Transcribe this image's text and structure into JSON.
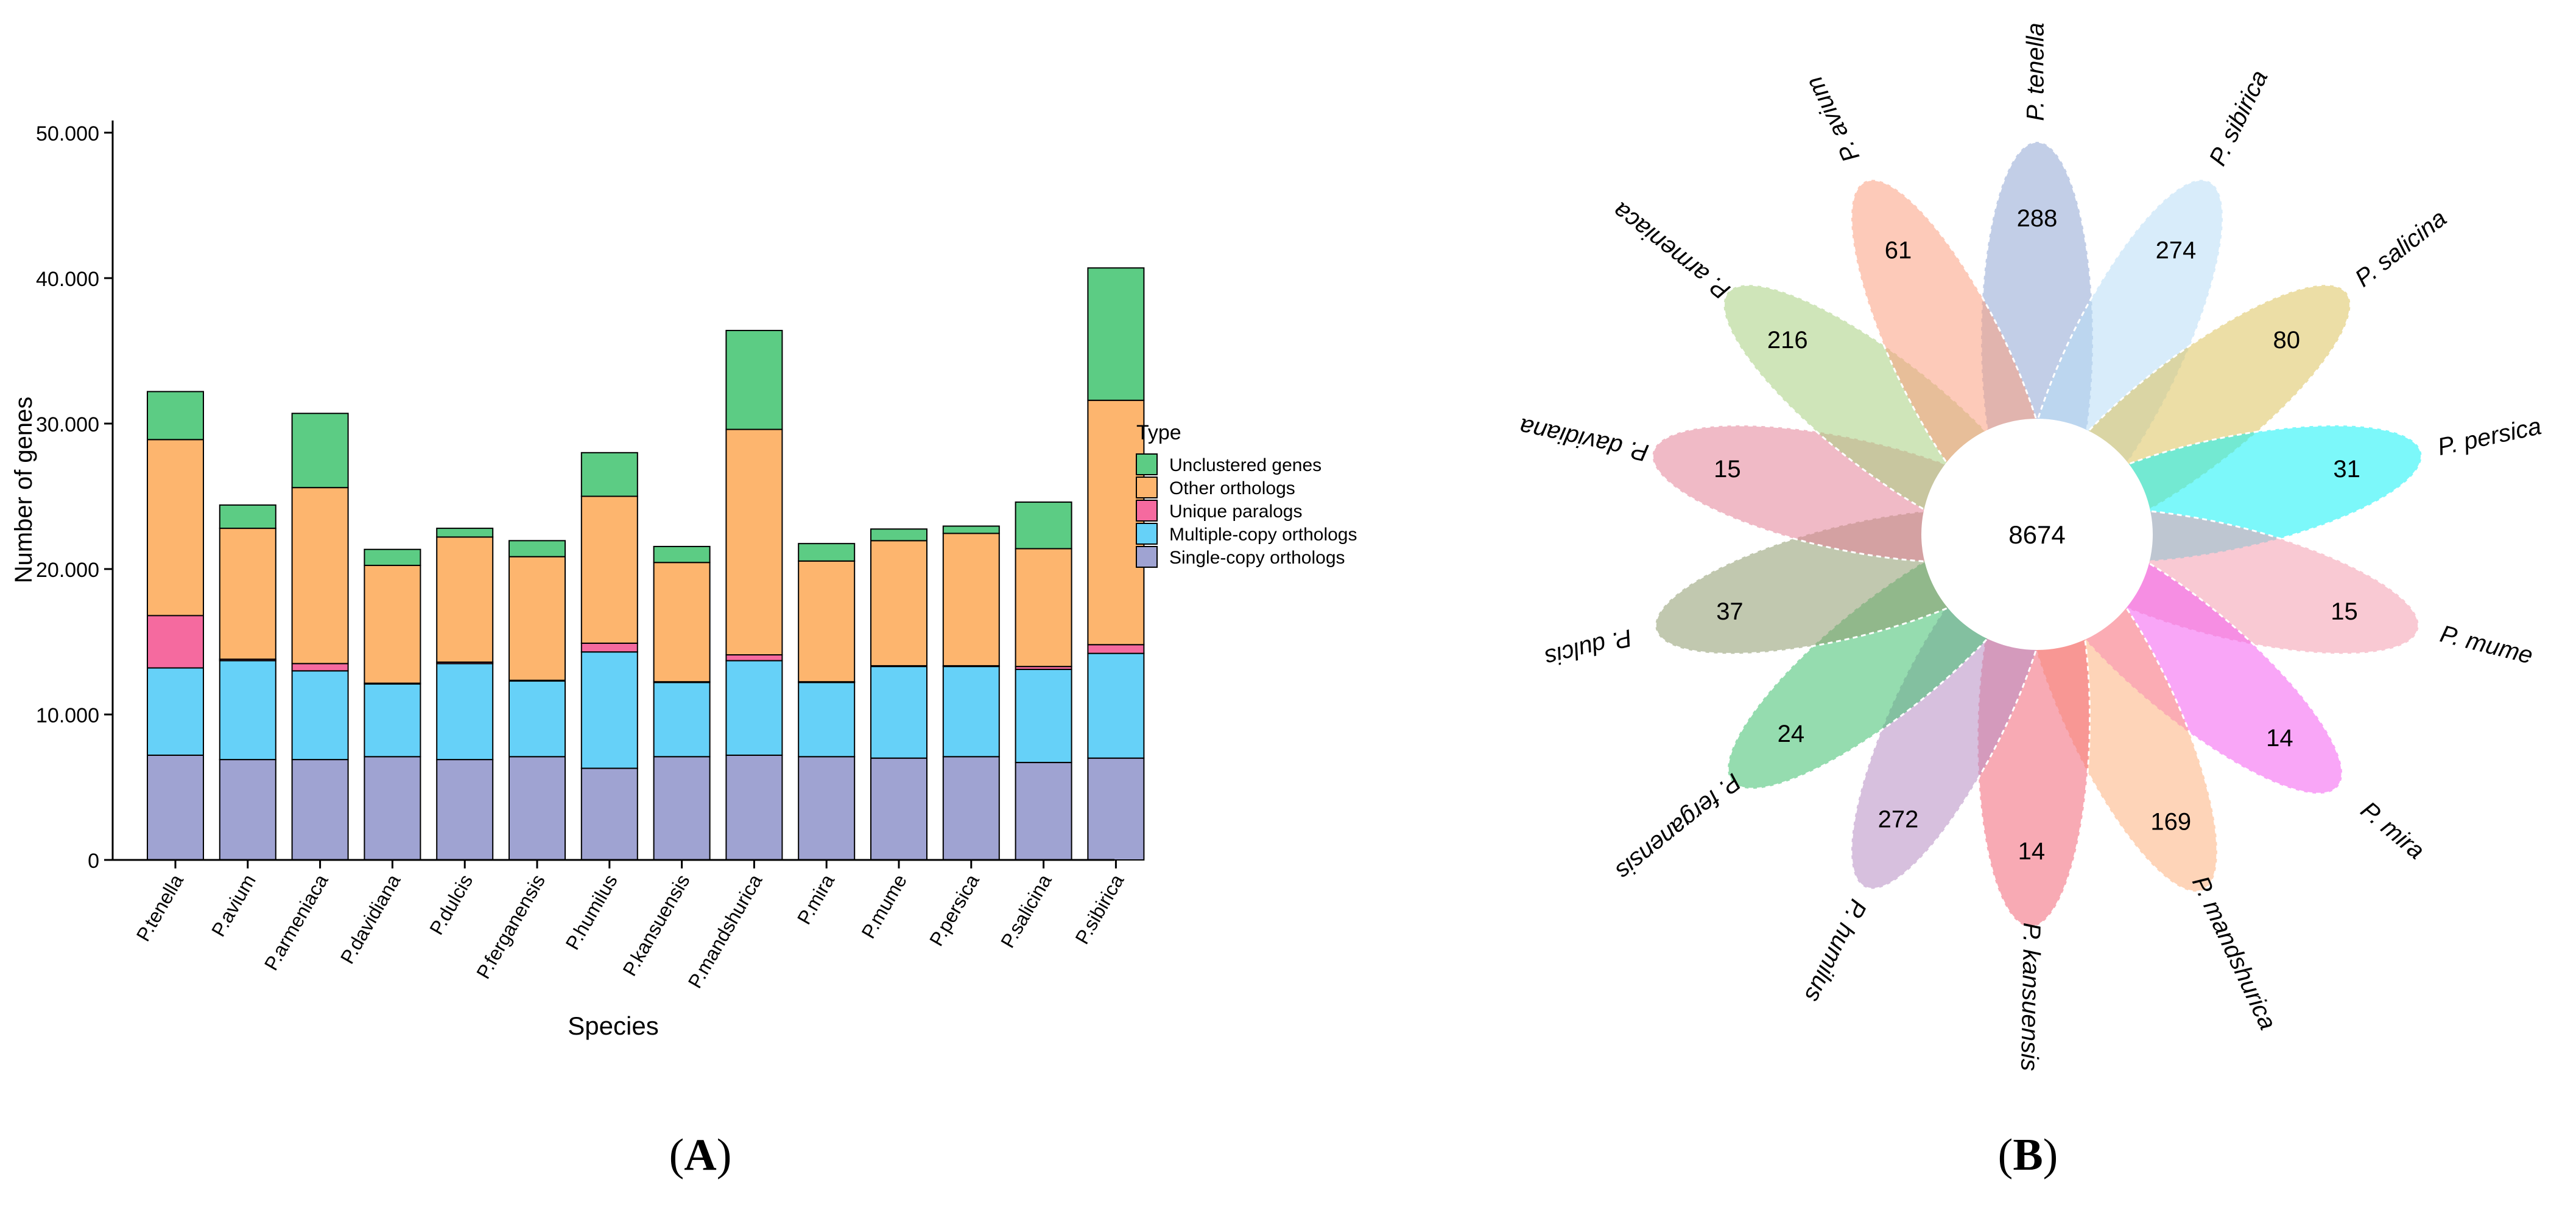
{
  "panel_labels": {
    "a_open": "(",
    "a_letter": "A",
    "a_close": ")",
    "b_open": "(",
    "b_letter": "B",
    "b_close": ")"
  },
  "chart_data": [
    {
      "type": "bar",
      "stacked": true,
      "title": "",
      "xlabel": "Species",
      "ylabel": "Number of genes",
      "ylim": [
        0,
        50000
      ],
      "yticks": [
        0,
        10000,
        20000,
        30000,
        40000,
        50000
      ],
      "ytick_labels": [
        "0",
        "10.000",
        "20.000",
        "30.000",
        "40.000",
        "50.000"
      ],
      "legend_title": "Type",
      "legend_position": "right",
      "categories": [
        "P.tenella",
        "P.avium",
        "P.armeniaca",
        "P.davidiana",
        "P.dulcis",
        "P.ferganensis",
        "P.humilus",
        "P.kansuensis",
        "P.mandshurica",
        "P.mira",
        "P.mume",
        "P.persica",
        "P.salicina",
        "P.sibirica"
      ],
      "series": [
        {
          "name": "Single-copy orthologs",
          "color": "#9fa3d2",
          "values": [
            7200,
            6900,
            6900,
            7100,
            6900,
            7100,
            6300,
            7100,
            7200,
            7100,
            7000,
            7100,
            6700,
            7000
          ]
        },
        {
          "name": "Multiple-copy orthologs",
          "color": "#66d1f8",
          "values": [
            6000,
            6800,
            6100,
            5000,
            6600,
            5200,
            8000,
            5100,
            6500,
            5100,
            6300,
            6200,
            6400,
            7200
          ]
        },
        {
          "name": "Unique paralogs",
          "color": "#f56a9f",
          "values": [
            3600,
            100,
            500,
            50,
            100,
            50,
            600,
            50,
            400,
            50,
            50,
            50,
            200,
            600
          ]
        },
        {
          "name": "Other orthologs",
          "color": "#fdb56e",
          "values": [
            12100,
            9000,
            12100,
            8100,
            8600,
            8500,
            10100,
            8200,
            15500,
            8300,
            8600,
            9100,
            8100,
            16800
          ]
        },
        {
          "name": "Unclustered genes",
          "color": "#5ccc84",
          "values": [
            3300,
            1600,
            5100,
            1100,
            600,
            1100,
            3000,
            1100,
            6800,
            1200,
            800,
            500,
            3200,
            9100
          ]
        }
      ],
      "legend_order": [
        "Unclustered genes",
        "Other orthologs",
        "Unique paralogs",
        "Multiple-copy orthologs",
        "Single-copy orthologs"
      ]
    },
    {
      "type": "flower",
      "center_label": "8674",
      "petals": [
        {
          "species": "P. tenella",
          "count": "288",
          "color": "#8fa6d3",
          "angle": 0
        },
        {
          "species": "P. sibirica",
          "count": "274",
          "color": "#b8dcf6",
          "angle": 26
        },
        {
          "species": "P. salicina",
          "count": "80",
          "color": "#dcc25c",
          "angle": 52
        },
        {
          "species": "P. persica",
          "count": "31",
          "color": "#10f2f5",
          "angle": 78
        },
        {
          "species": "P. mume",
          "count": "15",
          "color": "#f49cae",
          "angle": 104
        },
        {
          "species": "P. mira",
          "count": "14",
          "color": "#f45cf0",
          "angle": 130
        },
        {
          "species": "P. mandshurica",
          "count": "169",
          "color": "#fdb07e",
          "angle": 155
        },
        {
          "species": "P. kansuensis",
          "count": "14",
          "color": "#f26476",
          "angle": 181
        },
        {
          "species": "P. humilus",
          "count": "272",
          "color": "#b78dc3",
          "angle": 206
        },
        {
          "species": "P. ferganensis",
          "count": "24",
          "color": "#3ec06e",
          "angle": 231
        },
        {
          "species": "P. dulcis",
          "count": "37",
          "color": "#8e9a6e",
          "angle": 256
        },
        {
          "species": "P. davidiana",
          "count": "15",
          "color": "#e48298",
          "angle": 282
        },
        {
          "species": "P. armeniaca",
          "count": "216",
          "color": "#a8d080",
          "angle": 308
        },
        {
          "species": "P. avium",
          "count": "61",
          "color": "#fb9e80",
          "angle": 334
        }
      ]
    }
  ]
}
